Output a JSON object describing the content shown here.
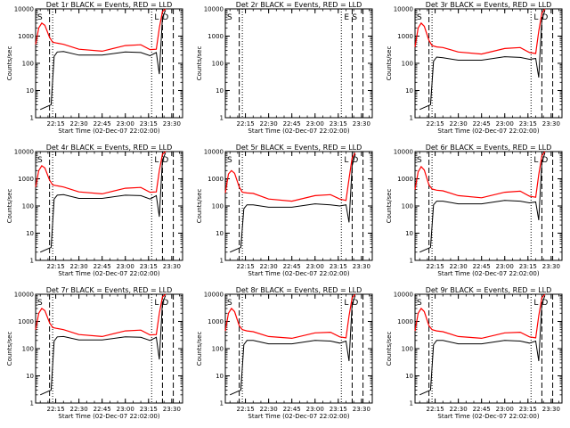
{
  "chart_data": {
    "type": "line",
    "figure": "grid of 9 panels, 3 rows x 3 columns",
    "y_scale": "log",
    "ylim": [
      1,
      10000
    ],
    "y_ticks": [
      "1",
      "10",
      "100",
      "1000",
      "10000"
    ],
    "ylabel": "Counts/sec",
    "xlabel": "Start Time (02-Dec-07 22:02:00)",
    "x_range": [
      "22:02",
      "23:37"
    ],
    "x_ticks": [
      "22:15",
      "22:30",
      "22:45",
      "23:00",
      "23:15",
      "23:30"
    ],
    "series_colors": {
      "events": "#000000",
      "lld": "#ff0000"
    },
    "marker_letters": {
      "s": "S",
      "e": "E",
      "l": "L",
      "d": "D"
    },
    "panels": [
      {
        "title": "Det 1r BLACK = Events, RED = LLD",
        "empty": false,
        "start_markers": [
          "S"
        ],
        "end_markers": [
          "L",
          "D"
        ],
        "events": {
          "x": [
            22.05,
            22.12,
            22.14,
            22.16,
            22.2,
            22.3,
            22.45,
            23.0,
            23.1,
            23.16,
            23.2,
            23.22,
            23.24,
            23.26
          ],
          "y": [
            2,
            3,
            180,
            260,
            270,
            200,
            200,
            260,
            250,
            190,
            250,
            40,
            5000,
            9000
          ]
        },
        "lld": {
          "x": [
            22.02,
            22.04,
            22.06,
            22.08,
            22.11,
            22.13,
            22.16,
            22.2,
            22.3,
            22.45,
            23.0,
            23.1,
            23.16,
            23.2,
            23.22,
            23.24,
            23.26
          ],
          "y": [
            500,
            2000,
            3000,
            2500,
            900,
            600,
            550,
            500,
            330,
            280,
            450,
            480,
            320,
            330,
            2000,
            8000,
            10000
          ]
        }
      },
      {
        "title": "Det 2r BLACK = Events, RED = LLD",
        "empty": true,
        "start_markers": [
          "S"
        ],
        "end_markers": [
          "E",
          "S"
        ]
      },
      {
        "title": "Det 3r BLACK = Events, RED = LLD",
        "empty": false,
        "start_markers": [
          "S"
        ],
        "end_markers": [
          "L",
          "D"
        ],
        "events": {
          "x": [
            22.05,
            22.12,
            22.14,
            22.16,
            22.2,
            22.3,
            22.45,
            23.0,
            23.1,
            23.16,
            23.2,
            23.22,
            23.24,
            23.26
          ],
          "y": [
            2,
            3,
            120,
            170,
            160,
            130,
            130,
            175,
            165,
            140,
            150,
            30,
            4000,
            9000
          ]
        },
        "lld": {
          "x": [
            22.02,
            22.04,
            22.06,
            22.08,
            22.11,
            22.13,
            22.16,
            22.2,
            22.3,
            22.45,
            23.0,
            23.1,
            23.16,
            23.2,
            23.22,
            23.24,
            23.26
          ],
          "y": [
            400,
            2000,
            3000,
            2300,
            700,
            450,
            400,
            380,
            260,
            220,
            350,
            380,
            250,
            230,
            1500,
            7000,
            10000
          ]
        }
      },
      {
        "title": "Det 4r BLACK = Events, RED = LLD",
        "empty": false,
        "start_markers": [
          "S"
        ],
        "end_markers": [
          "L",
          "D"
        ],
        "events": {
          "x": [
            22.05,
            22.12,
            22.14,
            22.16,
            22.2,
            22.3,
            22.45,
            23.0,
            23.1,
            23.16,
            23.2,
            23.22,
            23.24,
            23.26
          ],
          "y": [
            2,
            3,
            180,
            250,
            260,
            190,
            190,
            250,
            240,
            180,
            240,
            40,
            5000,
            9000
          ]
        },
        "lld": {
          "x": [
            22.02,
            22.04,
            22.06,
            22.08,
            22.11,
            22.13,
            22.16,
            22.2,
            22.3,
            22.45,
            23.0,
            23.1,
            23.16,
            23.2,
            23.22,
            23.24,
            23.26
          ],
          "y": [
            500,
            2000,
            3000,
            2500,
            900,
            600,
            550,
            500,
            330,
            280,
            450,
            480,
            320,
            330,
            2000,
            8000,
            10000
          ]
        }
      },
      {
        "title": "Det 5r BLACK = Events, RED = LLD",
        "empty": false,
        "start_markers": [
          "S"
        ],
        "end_markers": [
          "L",
          "D"
        ],
        "events": {
          "x": [
            22.05,
            22.12,
            22.14,
            22.16,
            22.2,
            22.3,
            22.45,
            23.0,
            23.1,
            23.16,
            23.2,
            23.22,
            23.24,
            23.26
          ],
          "y": [
            2,
            3,
            80,
            110,
            110,
            90,
            90,
            120,
            110,
            100,
            110,
            25,
            3000,
            8000
          ]
        },
        "lld": {
          "x": [
            22.02,
            22.04,
            22.06,
            22.08,
            22.11,
            22.13,
            22.16,
            22.2,
            22.3,
            22.45,
            23.0,
            23.1,
            23.16,
            23.2,
            23.22,
            23.24,
            23.26
          ],
          "y": [
            300,
            1500,
            2000,
            1600,
            500,
            320,
            300,
            290,
            180,
            150,
            240,
            260,
            180,
            160,
            1000,
            6000,
            9000
          ]
        }
      },
      {
        "title": "Det 6r BLACK = Events, RED = LLD",
        "empty": false,
        "start_markers": [
          "S"
        ],
        "end_markers": [
          "L",
          "D"
        ],
        "events": {
          "x": [
            22.05,
            22.12,
            22.14,
            22.16,
            22.2,
            22.3,
            22.45,
            23.0,
            23.1,
            23.16,
            23.2,
            23.22,
            23.24,
            23.26
          ],
          "y": [
            2,
            3,
            110,
            150,
            150,
            120,
            120,
            160,
            150,
            130,
            140,
            30,
            4000,
            9000
          ]
        },
        "lld": {
          "x": [
            22.02,
            22.04,
            22.06,
            22.08,
            22.11,
            22.13,
            22.16,
            22.2,
            22.3,
            22.45,
            23.0,
            23.1,
            23.16,
            23.2,
            23.22,
            23.24,
            23.26
          ],
          "y": [
            400,
            1800,
            2800,
            2100,
            600,
            420,
            380,
            360,
            240,
            200,
            320,
            350,
            230,
            210,
            1400,
            7000,
            10000
          ]
        }
      },
      {
        "title": "Det 7r BLACK = Events, RED = LLD",
        "empty": false,
        "start_markers": [
          "S"
        ],
        "end_markers": [
          "L",
          "D"
        ],
        "events": {
          "x": [
            22.05,
            22.12,
            22.14,
            22.16,
            22.2,
            22.3,
            22.45,
            23.0,
            23.1,
            23.16,
            23.2,
            23.22,
            23.24,
            23.26
          ],
          "y": [
            2,
            3,
            190,
            270,
            280,
            210,
            210,
            270,
            260,
            200,
            260,
            40,
            5000,
            9000
          ]
        },
        "lld": {
          "x": [
            22.02,
            22.04,
            22.06,
            22.08,
            22.11,
            22.13,
            22.16,
            22.2,
            22.3,
            22.45,
            23.0,
            23.1,
            23.16,
            23.2,
            23.22,
            23.24,
            23.26
          ],
          "y": [
            500,
            2000,
            3000,
            2500,
            900,
            600,
            550,
            500,
            330,
            280,
            450,
            480,
            320,
            330,
            2000,
            8000,
            10000
          ]
        }
      },
      {
        "title": "Det 8r BLACK = Events, RED = LLD",
        "empty": false,
        "start_markers": [
          "S"
        ],
        "end_markers": [
          "L",
          "D"
        ],
        "events": {
          "x": [
            22.05,
            22.12,
            22.14,
            22.16,
            22.2,
            22.3,
            22.45,
            23.0,
            23.1,
            23.16,
            23.2,
            23.22,
            23.24,
            23.26
          ],
          "y": [
            2,
            3,
            140,
            200,
            200,
            150,
            150,
            200,
            190,
            160,
            190,
            35,
            4500,
            9000
          ]
        },
        "lld": {
          "x": [
            22.02,
            22.04,
            22.06,
            22.08,
            22.11,
            22.13,
            22.16,
            22.2,
            22.3,
            22.45,
            23.0,
            23.1,
            23.16,
            23.2,
            23.22,
            23.24,
            23.26
          ],
          "y": [
            450,
            2000,
            3000,
            2300,
            700,
            500,
            450,
            420,
            280,
            240,
            380,
            400,
            270,
            250,
            1600,
            7500,
            10000
          ]
        }
      },
      {
        "title": "Det 9r BLACK = Events, RED = LLD",
        "empty": false,
        "start_markers": [
          "S"
        ],
        "end_markers": [
          "L",
          "D"
        ],
        "events": {
          "x": [
            22.05,
            22.12,
            22.14,
            22.16,
            22.2,
            22.3,
            22.45,
            23.0,
            23.1,
            23.16,
            23.2,
            23.22,
            23.24,
            23.26
          ],
          "y": [
            2,
            3,
            140,
            200,
            200,
            150,
            150,
            200,
            190,
            160,
            190,
            35,
            4500,
            9000
          ]
        },
        "lld": {
          "x": [
            22.02,
            22.04,
            22.06,
            22.08,
            22.11,
            22.13,
            22.16,
            22.2,
            22.3,
            22.45,
            23.0,
            23.1,
            23.16,
            23.2,
            23.22,
            23.24,
            23.26
          ],
          "y": [
            450,
            2000,
            3000,
            2300,
            700,
            500,
            450,
            420,
            280,
            240,
            380,
            400,
            270,
            250,
            1600,
            7500,
            10000
          ]
        }
      }
    ]
  }
}
